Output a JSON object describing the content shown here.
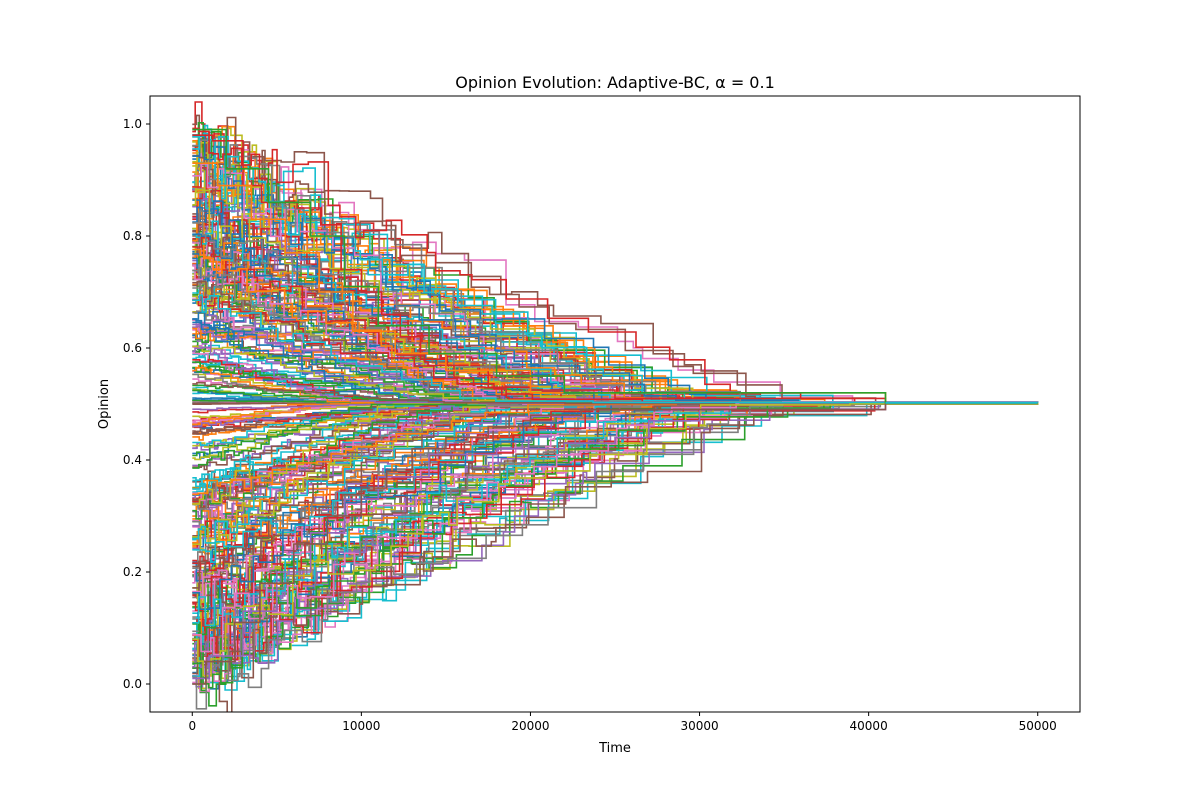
{
  "chart_data": {
    "type": "line",
    "title": "Opinion Evolution: Adaptive-BC, α = 0.1",
    "xlabel": "Time",
    "ylabel": "Opinion",
    "xlim": [
      -2500,
      52500
    ],
    "ylim": [
      -0.05,
      1.05
    ],
    "xticks": [
      0,
      10000,
      20000,
      30000,
      40000,
      50000
    ],
    "xtick_labels": [
      "0",
      "10000",
      "20000",
      "30000",
      "40000",
      "50000"
    ],
    "yticks": [
      0.0,
      0.2,
      0.4,
      0.6,
      0.8,
      1.0
    ],
    "ytick_labels": [
      "0.0",
      "0.2",
      "0.4",
      "0.6",
      "0.8",
      "1.0"
    ],
    "grid": false,
    "legend": "none",
    "line_style": "step",
    "consensus_value": 0.502,
    "consensus_time": 41000,
    "x_end": 50000,
    "series_count": 300,
    "color_cycle": [
      "#1f77b4",
      "#ff7f0e",
      "#2ca02c",
      "#d62728",
      "#9467bd",
      "#8c564b",
      "#e377c2",
      "#7f7f7f",
      "#bcbd22",
      "#17becf"
    ],
    "series": [
      {
        "x": [
          0,
          1200,
          3000,
          4100,
          5400,
          6200,
          7600,
          8800,
          10000,
          11200,
          12300,
          13500,
          15000,
          17500,
          20000,
          25000,
          41000,
          50000
        ],
        "values": [
          0.98,
          0.97,
          0.89,
          0.86,
          0.86,
          0.85,
          0.82,
          0.74,
          0.7,
          0.66,
          0.62,
          0.58,
          0.56,
          0.53,
          0.525,
          0.51,
          0.502,
          0.502
        ]
      },
      {
        "x": [
          0,
          1000,
          3000,
          5000,
          7000,
          9000,
          11000,
          14000,
          18000,
          22000,
          25000,
          27000,
          30000,
          41000,
          50000
        ],
        "values": [
          0.01,
          0.05,
          0.13,
          0.2,
          0.27,
          0.33,
          0.37,
          0.41,
          0.42,
          0.43,
          0.44,
          0.47,
          0.49,
          0.502,
          0.502
        ]
      },
      {
        "x": [
          0,
          800,
          2500,
          4000,
          6000,
          8000,
          10000,
          11500,
          13000,
          15000,
          17500,
          20000,
          23000,
          41000,
          50000
        ],
        "values": [
          0.0,
          0.04,
          0.11,
          0.18,
          0.25,
          0.3,
          0.35,
          0.38,
          0.42,
          0.44,
          0.46,
          0.48,
          0.49,
          0.502,
          0.502
        ]
      },
      {
        "x": [
          0,
          1500,
          3500,
          5500,
          7500,
          9500,
          12000,
          15000,
          20000,
          41000,
          50000
        ],
        "values": [
          0.93,
          0.89,
          0.83,
          0.77,
          0.7,
          0.63,
          0.59,
          0.56,
          0.52,
          0.502,
          0.502
        ]
      },
      {
        "x": [
          0,
          2000,
          4500,
          7000,
          9000,
          11000,
          14000,
          18000,
          22000,
          41000,
          50000
        ],
        "values": [
          0.99,
          0.92,
          0.86,
          0.8,
          0.71,
          0.64,
          0.59,
          0.55,
          0.52,
          0.502,
          0.502
        ]
      }
    ]
  }
}
